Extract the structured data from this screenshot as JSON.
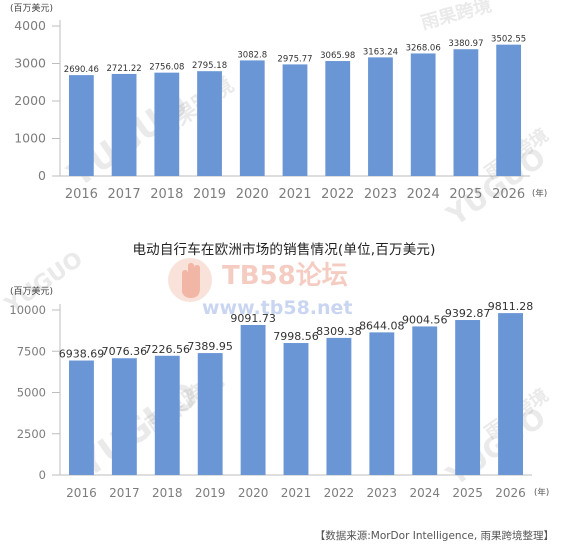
{
  "colors": {
    "bar": "#6a96d5",
    "axis": "#bdbdbd",
    "text": "#7d7d7d"
  },
  "chart_data": [
    {
      "type": "bar",
      "title": "",
      "unit": "(百万美元)",
      "x_suffix": "(年)",
      "categories": [
        "2016",
        "2017",
        "2018",
        "2019",
        "2020",
        "2021",
        "2022",
        "2023",
        "2024",
        "2025",
        "2026"
      ],
      "values": [
        2690.46,
        2721.22,
        2756.08,
        2795.18,
        3082.8,
        2975.77,
        3065.98,
        3163.24,
        3268.06,
        3380.97,
        3502.55
      ],
      "value_labels": [
        "2690.46",
        "2721.22",
        "2756.08",
        "2795.18",
        "3082.8",
        "2975.77",
        "3065.98",
        "3163.24",
        "3268.06",
        "3380.97",
        "3502.55"
      ],
      "ylim": [
        0,
        4000
      ],
      "yticks": [
        0,
        1000,
        2000,
        3000,
        4000
      ],
      "grid": false
    },
    {
      "type": "bar",
      "title": "电动自行车在欧洲市场的销售情况(单位,百万美元)",
      "unit": "(百万美元)",
      "x_suffix": "(年)",
      "categories": [
        "2016",
        "2017",
        "2018",
        "2019",
        "2020",
        "2021",
        "2022",
        "2023",
        "2024",
        "2025",
        "2026"
      ],
      "values": [
        6938.69,
        7076.36,
        7226.56,
        7389.95,
        9091.73,
        7998.56,
        8309.38,
        8644.08,
        9004.56,
        9392.87,
        9811.28
      ],
      "value_labels": [
        "6938.69",
        "7076.36",
        "7226.56",
        "7389.95",
        "9091.73",
        "7998.56",
        "8309.38",
        "8644.08",
        "9004.56",
        "9392.87",
        "9811.28"
      ],
      "ylim": [
        0,
        10000
      ],
      "yticks": [
        0,
        2500,
        5000,
        7500,
        10000
      ],
      "grid": false
    }
  ],
  "source": "【数据来源:MorDor Intelligence, 雨果跨境整理】",
  "watermarks": {
    "brand": "YUGUO",
    "brand_cn": "雨果跨境",
    "forum_logo": "TB58论坛",
    "forum_url": "www.tb58.net"
  }
}
